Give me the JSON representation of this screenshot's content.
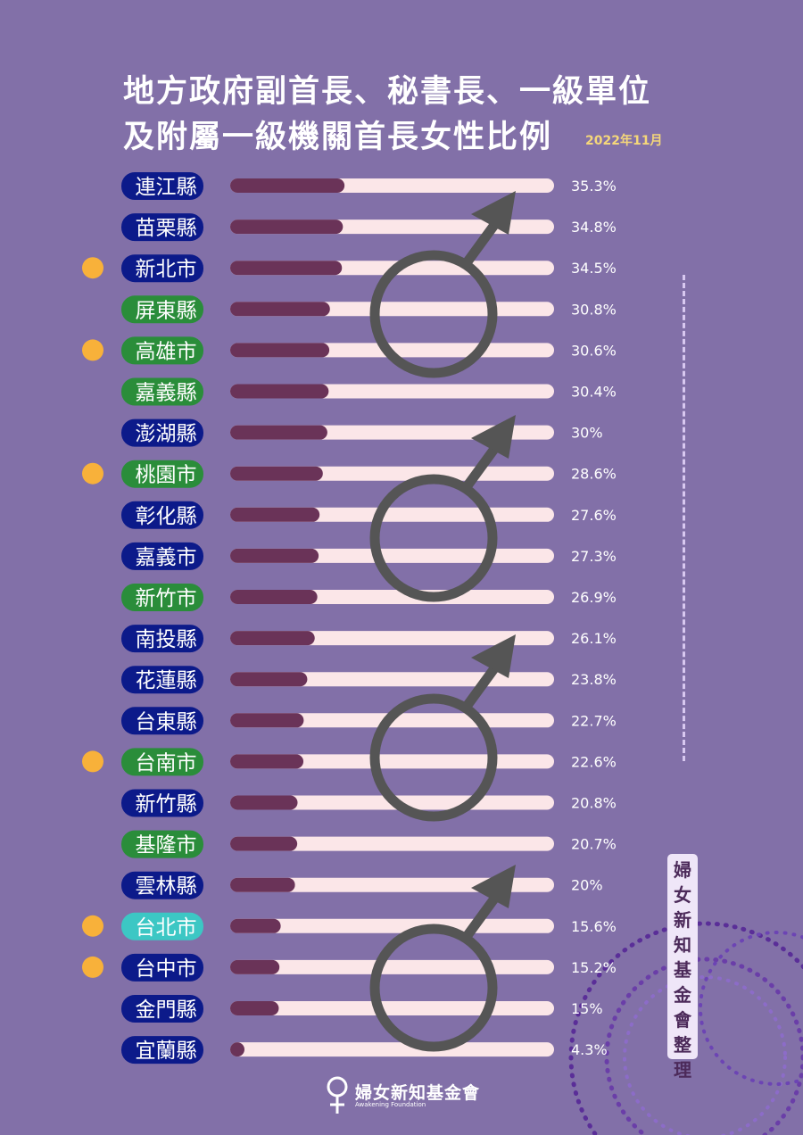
{
  "title_line1": "地方政府副首長、秘書長、一級單位",
  "title_line2": "及附屬一級機關首長女性比例",
  "date": "2022年11月",
  "credit": "婦女新知基金會整理",
  "logo": {
    "name": "婦女新知基金會",
    "subtitle": "Awakening Foundation"
  },
  "colors": {
    "background": "#8270a8",
    "track": "#fbe6e8",
    "fill": "#6a3358",
    "dot": "#f8b13a",
    "badge_blue": "#0c1a8a",
    "badge_green": "#2a8d3a",
    "badge_cyan": "#3cc7c4",
    "symbol": "#555555"
  },
  "chart_data": {
    "type": "bar",
    "orientation": "horizontal",
    "unit": "%",
    "xlim": [
      0,
      100
    ],
    "categories": [
      "連江縣",
      "苗栗縣",
      "新北市",
      "屏東縣",
      "高雄市",
      "嘉義縣",
      "澎湖縣",
      "桃園市",
      "彰化縣",
      "嘉義市",
      "新竹市",
      "南投縣",
      "花蓮縣",
      "台東縣",
      "台南市",
      "新竹縣",
      "基隆市",
      "雲林縣",
      "台北市",
      "台中市",
      "金門縣",
      "宜蘭縣"
    ],
    "values": [
      35.3,
      34.8,
      34.5,
      30.8,
      30.6,
      30.4,
      30,
      28.6,
      27.6,
      27.3,
      26.9,
      26.1,
      23.8,
      22.7,
      22.6,
      20.8,
      20.7,
      20,
      15.6,
      15.2,
      15,
      4.3
    ],
    "value_labels": [
      "35.3%",
      "34.8%",
      "34.5%",
      "30.8%",
      "30.6%",
      "30.4%",
      "30%",
      "28.6%",
      "27.6%",
      "27.3%",
      "26.9%",
      "26.1%",
      "23.8%",
      "22.7%",
      "22.6%",
      "20.8%",
      "20.7%",
      "20%",
      "15.6%",
      "15.2%",
      "15%",
      "4.3%"
    ],
    "badge_color": [
      "blue",
      "blue",
      "blue",
      "green",
      "green",
      "green",
      "blue",
      "green",
      "blue",
      "blue",
      "green",
      "blue",
      "blue",
      "blue",
      "green",
      "blue",
      "green",
      "blue",
      "cyan",
      "blue",
      "blue",
      "blue"
    ],
    "dot_marker": [
      false,
      false,
      true,
      false,
      true,
      false,
      false,
      true,
      false,
      false,
      false,
      false,
      false,
      false,
      true,
      false,
      false,
      false,
      true,
      true,
      false,
      false
    ]
  }
}
